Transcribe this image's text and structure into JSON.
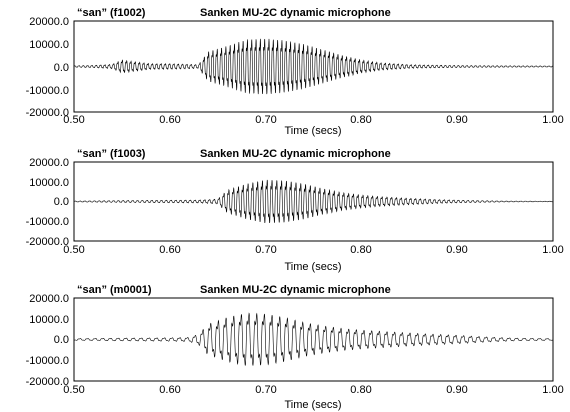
{
  "chart_data": [
    {
      "type": "line",
      "title_left": "“san” (f1002)",
      "title_right": "Sanken MU-2C dynamic microphone",
      "xlabel": "Time (secs)",
      "ylabel": "",
      "xlim": [
        0.5,
        1.0
      ],
      "ylim": [
        -20000,
        20000
      ],
      "xticks": [
        0.5,
        0.6,
        0.7,
        0.8,
        0.9,
        1.0
      ],
      "xtick_labels": [
        "0.50",
        "0.60",
        "0.70",
        "0.80",
        "0.90",
        "1.00"
      ],
      "yticks": [
        20000,
        10000,
        0,
        -10000,
        -20000
      ],
      "ytick_labels": [
        "20000.0",
        "10000.0",
        "0.0",
        "-10000.0",
        "-20000.0"
      ],
      "grid": false,
      "series": [
        {
          "color": "#000000",
          "envelope_x": [
            0.5,
            0.52,
            0.54,
            0.55,
            0.56,
            0.58,
            0.6,
            0.62,
            0.63,
            0.64,
            0.66,
            0.68,
            0.7,
            0.72,
            0.74,
            0.76,
            0.78,
            0.8,
            0.82,
            0.85,
            0.88,
            0.91,
            0.95,
            1.0
          ],
          "envelope_y": [
            400,
            600,
            1200,
            3500,
            2800,
            1500,
            1500,
            1200,
            1000,
            8000,
            11000,
            14500,
            15000,
            14000,
            12000,
            9000,
            6000,
            3500,
            2000,
            1000,
            700,
            500,
            400,
            300
          ],
          "period": 0.0045
        }
      ]
    },
    {
      "type": "line",
      "title_left": "“san” (f1003)",
      "title_right": "Sanken MU-2C dynamic microphone",
      "xlabel": "Time (secs)",
      "ylabel": "",
      "xlim": [
        0.5,
        1.0
      ],
      "ylim": [
        -20000,
        20000
      ],
      "xticks": [
        0.5,
        0.6,
        0.7,
        0.8,
        0.9,
        1.0
      ],
      "xtick_labels": [
        "0.50",
        "0.60",
        "0.70",
        "0.80",
        "0.90",
        "1.00"
      ],
      "yticks": [
        20000,
        10000,
        0,
        -10000,
        -20000
      ],
      "ytick_labels": [
        "20000.0",
        "10000.0",
        "0.0",
        "-10000.0",
        "-20000.0"
      ],
      "grid": false,
      "series": [
        {
          "color": "#000000",
          "envelope_x": [
            0.5,
            0.55,
            0.6,
            0.63,
            0.65,
            0.66,
            0.68,
            0.7,
            0.72,
            0.74,
            0.76,
            0.78,
            0.8,
            0.82,
            0.85,
            0.88,
            0.91,
            0.95,
            1.0
          ],
          "envelope_y": [
            300,
            600,
            800,
            900,
            1500,
            7000,
            11000,
            13500,
            13000,
            11000,
            8000,
            5500,
            4000,
            3000,
            2000,
            1200,
            700,
            300,
            200
          ],
          "period": 0.005
        }
      ]
    },
    {
      "type": "line",
      "title_left": "“san” (m0001)",
      "title_right": "Sanken MU-2C dynamic microphone",
      "xlabel": "Time (secs)",
      "ylabel": "",
      "xlim": [
        0.5,
        1.0
      ],
      "ylim": [
        -20000,
        20000
      ],
      "xticks": [
        0.5,
        0.6,
        0.7,
        0.8,
        0.9,
        1.0
      ],
      "xtick_labels": [
        "0.50",
        "0.60",
        "0.70",
        "0.80",
        "0.90",
        "1.00"
      ],
      "yticks": [
        20000,
        10000,
        0,
        -10000,
        -20000
      ],
      "ytick_labels": [
        "20000.0",
        "10000.0",
        "0.0",
        "-10000.0",
        "-20000.0"
      ],
      "grid": false,
      "series": [
        {
          "color": "#000000",
          "envelope_x": [
            0.5,
            0.55,
            0.6,
            0.62,
            0.63,
            0.64,
            0.66,
            0.68,
            0.7,
            0.72,
            0.74,
            0.76,
            0.78,
            0.8,
            0.83,
            0.86,
            0.9,
            0.93,
            0.96,
            1.0
          ],
          "envelope_y": [
            500,
            800,
            1000,
            1200,
            3000,
            9000,
            13000,
            15500,
            15000,
            13000,
            10000,
            8000,
            6500,
            5500,
            4500,
            3500,
            2500,
            1500,
            800,
            500
          ],
          "period": 0.008
        }
      ]
    }
  ]
}
